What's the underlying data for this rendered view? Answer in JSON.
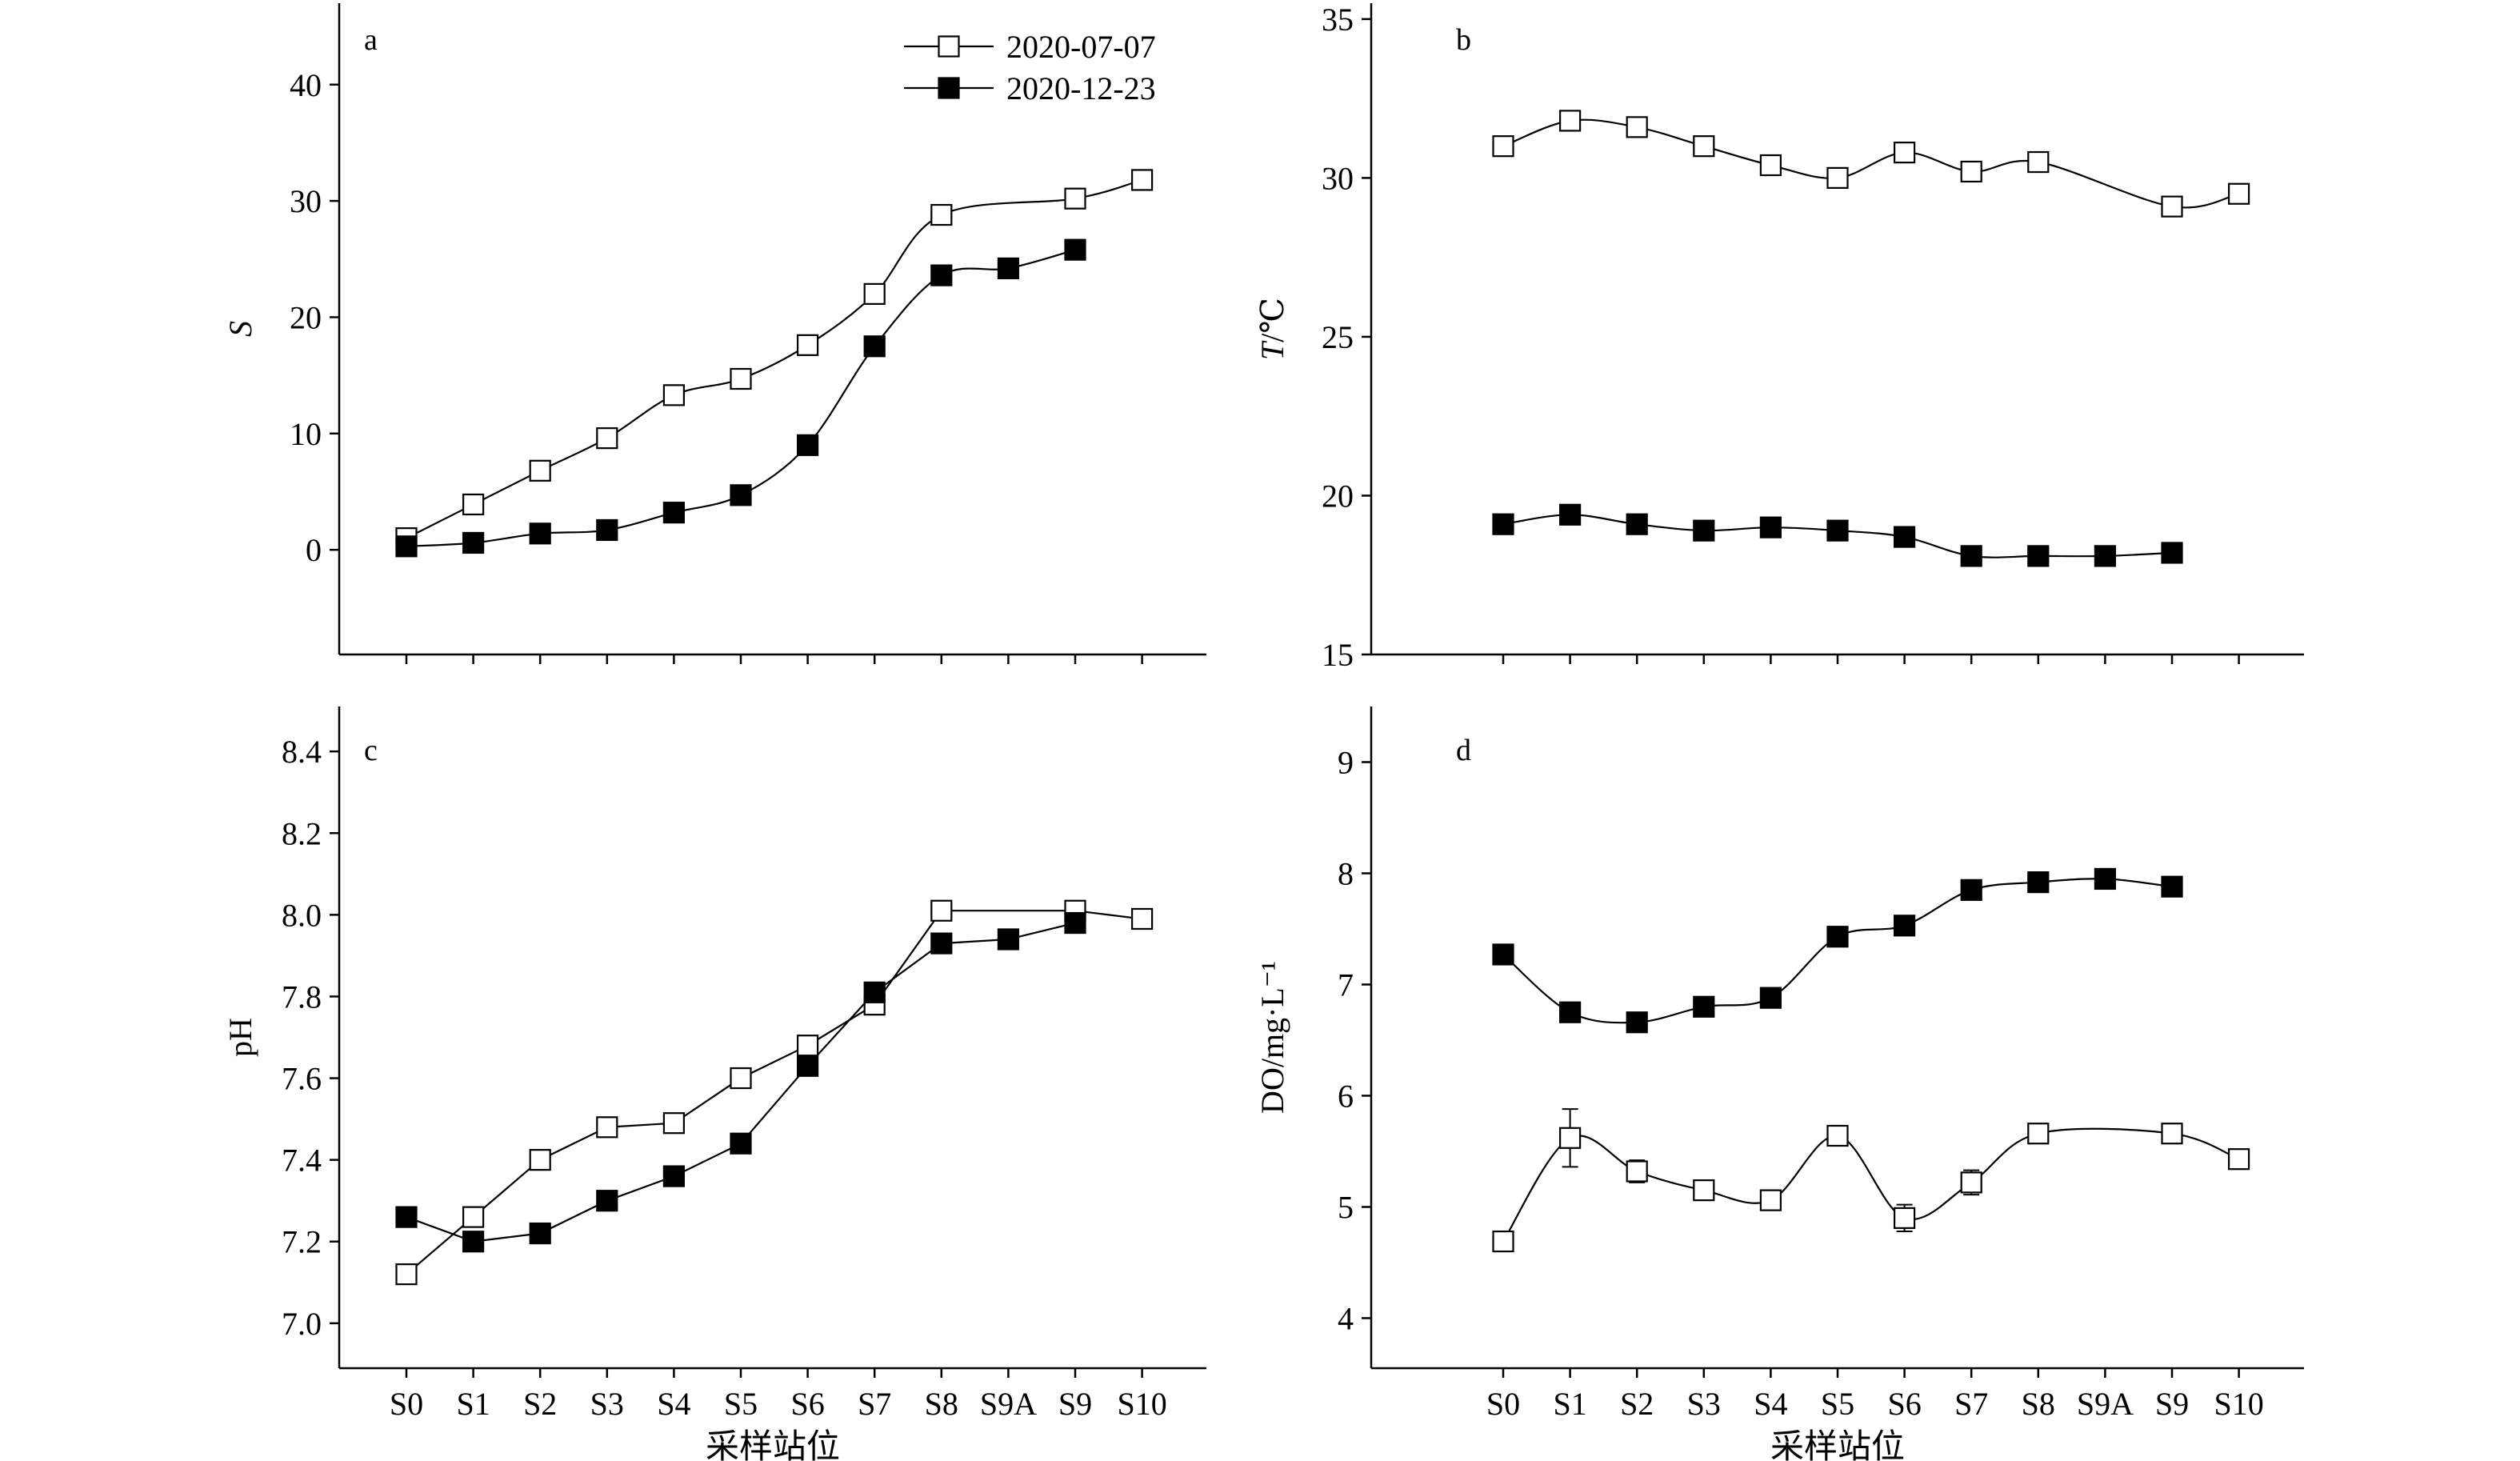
{
  "figure": {
    "xlabel": "采样站位",
    "legend": [
      {
        "name": "2020-07-07",
        "marker": "open-square"
      },
      {
        "name": "2020-12-23",
        "marker": "filled-square"
      }
    ]
  },
  "chart_data": [
    {
      "panel": "a",
      "type": "line",
      "categories": [
        "S0",
        "S1",
        "S2",
        "S3",
        "S4",
        "S5",
        "S6",
        "S7",
        "S8",
        "S9A",
        "S9",
        "S10"
      ],
      "ylabel_italic": "S",
      "ylabel_rest": "",
      "ylim": [
        -9,
        47
      ],
      "yticks": [
        0,
        10,
        20,
        30,
        40
      ],
      "ytick_labels": [
        "0",
        "10",
        "20",
        "30",
        "40"
      ],
      "show_xticklabels": false,
      "show_xlabel": false,
      "show_legend": true,
      "legend_position": "top-right",
      "smooth": true,
      "series": [
        {
          "name": "2020-07-07",
          "marker": "open",
          "values": [
            1.0,
            3.9,
            6.8,
            9.6,
            13.3,
            14.7,
            17.6,
            22.0,
            28.8,
            null,
            30.2,
            31.8
          ]
        },
        {
          "name": "2020-12-23",
          "marker": "filled",
          "values": [
            0.3,
            0.6,
            1.4,
            1.7,
            3.2,
            4.7,
            9.0,
            17.5,
            23.6,
            24.2,
            25.8,
            null
          ]
        }
      ]
    },
    {
      "panel": "b",
      "type": "line",
      "categories": [
        "S0",
        "S1",
        "S2",
        "S3",
        "S4",
        "S5",
        "S6",
        "S7",
        "S8",
        "S9A",
        "S9",
        "S10"
      ],
      "ylabel_italic": "T",
      "ylabel_rest": "/℃",
      "ylim": [
        15,
        35.5
      ],
      "yticks": [
        15,
        20,
        25,
        30,
        35
      ],
      "ytick_labels": [
        "15",
        "20",
        "25",
        "30",
        "35"
      ],
      "show_xticklabels": false,
      "show_xlabel": false,
      "show_legend": false,
      "smooth": true,
      "series": [
        {
          "name": "2020-07-07",
          "marker": "open",
          "values": [
            31.0,
            31.8,
            31.6,
            31.0,
            30.4,
            30.0,
            30.8,
            30.2,
            30.5,
            null,
            29.1,
            29.5
          ]
        },
        {
          "name": "2020-12-23",
          "marker": "filled",
          "values": [
            19.1,
            19.4,
            19.1,
            18.9,
            19.0,
            18.9,
            18.7,
            18.1,
            18.1,
            18.1,
            18.2,
            null
          ]
        }
      ]
    },
    {
      "panel": "c",
      "type": "line",
      "categories": [
        "S0",
        "S1",
        "S2",
        "S3",
        "S4",
        "S5",
        "S6",
        "S7",
        "S8",
        "S9A",
        "S9",
        "S10"
      ],
      "ylabel_italic": "",
      "ylabel_rest": "pH",
      "ylim": [
        6.89,
        8.51
      ],
      "yticks": [
        7.0,
        7.2,
        7.4,
        7.6,
        7.8,
        8.0,
        8.2,
        8.4
      ],
      "ytick_labels": [
        "7.0",
        "7.2",
        "7.4",
        "7.6",
        "7.8",
        "8.0",
        "8.2",
        "8.4"
      ],
      "show_xticklabels": true,
      "show_xlabel": true,
      "show_legend": false,
      "smooth": false,
      "series": [
        {
          "name": "2020-07-07",
          "marker": "open",
          "values": [
            7.12,
            7.26,
            7.4,
            7.48,
            7.49,
            7.6,
            7.68,
            7.78,
            8.01,
            null,
            8.01,
            7.99
          ]
        },
        {
          "name": "2020-12-23",
          "marker": "filled",
          "values": [
            7.26,
            7.2,
            7.22,
            7.3,
            7.36,
            7.44,
            7.63,
            7.81,
            7.93,
            7.94,
            7.98,
            null
          ]
        }
      ]
    },
    {
      "panel": "d",
      "type": "line",
      "categories": [
        "S0",
        "S1",
        "S2",
        "S3",
        "S4",
        "S5",
        "S6",
        "S7",
        "S8",
        "S9A",
        "S9",
        "S10"
      ],
      "ylabel_italic": "",
      "ylabel_rest": "DO/mg·L⁻¹",
      "ylim": [
        3.55,
        9.5
      ],
      "yticks": [
        4,
        5,
        6,
        7,
        8,
        9
      ],
      "ytick_labels": [
        "4",
        "5",
        "6",
        "7",
        "8",
        "9"
      ],
      "show_xticklabels": true,
      "show_xlabel": true,
      "show_legend": false,
      "smooth": true,
      "series": [
        {
          "name": "2020-07-07",
          "marker": "open",
          "values": [
            4.69,
            5.62,
            5.32,
            5.15,
            5.06,
            5.64,
            4.9,
            5.22,
            5.66,
            null,
            5.66,
            5.43
          ],
          "errors": [
            0,
            0.26,
            0.1,
            0,
            0.08,
            0,
            0.12,
            0.11,
            0,
            null,
            0,
            0
          ]
        },
        {
          "name": "2020-12-23",
          "marker": "filled",
          "values": [
            7.27,
            6.75,
            6.66,
            6.8,
            6.88,
            7.43,
            7.53,
            7.85,
            7.92,
            7.95,
            7.88,
            null
          ]
        }
      ]
    }
  ]
}
